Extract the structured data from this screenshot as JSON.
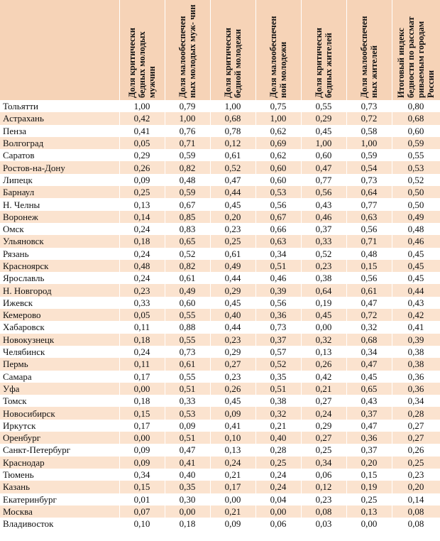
{
  "table": {
    "headers": [
      "",
      "Доля критически бедных молодых мужчин",
      "Доля малообеспечен ных молодых муж- чин",
      "Доля критически бедной молодежи",
      "Доля малообеспечен ной молодежи",
      "Доля критически бедных жителей",
      "Доля малообеспечен ных жителей",
      "Итоговый индекс бедности по рассмат риваемым городам России"
    ],
    "rows": [
      [
        "Тольятти",
        "1,00",
        "0,79",
        "1,00",
        "0,75",
        "0,55",
        "0,73",
        "0,80"
      ],
      [
        "Астрахань",
        "0,42",
        "1,00",
        "0,68",
        "1,00",
        "0,29",
        "0,72",
        "0,68"
      ],
      [
        "Пенза",
        "0,41",
        "0,76",
        "0,78",
        "0,62",
        "0,45",
        "0,58",
        "0,60"
      ],
      [
        "Волгоград",
        "0,05",
        "0,71",
        "0,12",
        "0,69",
        "1,00",
        "1,00",
        "0,59"
      ],
      [
        "Саратов",
        "0,29",
        "0,59",
        "0,61",
        "0,62",
        "0,60",
        "0,59",
        "0,55"
      ],
      [
        "Ростов-на-Дону",
        "0,26",
        "0,82",
        "0,52",
        "0,60",
        "0,47",
        "0,54",
        "0,53"
      ],
      [
        "Липецк",
        "0,09",
        "0,48",
        "0,47",
        "0,60",
        "0,77",
        "0,73",
        "0,52"
      ],
      [
        "Барнаул",
        "0,25",
        "0,59",
        "0,44",
        "0,53",
        "0,56",
        "0,64",
        "0,50"
      ],
      [
        "Н. Челны",
        "0,13",
        "0,67",
        "0,45",
        "0,56",
        "0,43",
        "0,77",
        "0,50"
      ],
      [
        "Воронеж",
        "0,14",
        "0,85",
        "0,20",
        "0,67",
        "0,46",
        "0,63",
        "0,49"
      ],
      [
        "Омск",
        "0,24",
        "0,83",
        "0,23",
        "0,66",
        "0,37",
        "0,56",
        "0,48"
      ],
      [
        "Ульяновск",
        "0,18",
        "0,65",
        "0,25",
        "0,63",
        "0,33",
        "0,71",
        "0,46"
      ],
      [
        "Рязань",
        "0,24",
        "0,52",
        "0,61",
        "0,34",
        "0,52",
        "0,48",
        "0,45"
      ],
      [
        "Красноярск",
        "0,48",
        "0,82",
        "0,49",
        "0,51",
        "0,23",
        "0,15",
        "0,45"
      ],
      [
        "Ярославль",
        "0,24",
        "0,61",
        "0,44",
        "0,46",
        "0,38",
        "0,56",
        "0,45"
      ],
      [
        "Н. Новгород",
        "0,23",
        "0,49",
        "0,29",
        "0,39",
        "0,64",
        "0,61",
        "0,44"
      ],
      [
        "Ижевск",
        "0,33",
        "0,60",
        "0,45",
        "0,56",
        "0,19",
        "0,47",
        "0,43"
      ],
      [
        "Кемерово",
        "0,05",
        "0,55",
        "0,40",
        "0,36",
        "0,45",
        "0,72",
        "0,42"
      ],
      [
        "Хабаровск",
        "0,11",
        "0,88",
        "0,44",
        "0,73",
        "0,00",
        "0,32",
        "0,41"
      ],
      [
        "Новокузнецк",
        "0,18",
        "0,55",
        "0,23",
        "0,37",
        "0,32",
        "0,68",
        "0,39"
      ],
      [
        "Челябинск",
        "0,24",
        "0,73",
        "0,29",
        "0,57",
        "0,13",
        "0,34",
        "0,38"
      ],
      [
        "Пермь",
        "0,11",
        "0,61",
        "0,27",
        "0,52",
        "0,26",
        "0,47",
        "0,38"
      ],
      [
        "Самара",
        "0,17",
        "0,55",
        "0,23",
        "0,35",
        "0,42",
        "0,45",
        "0,36"
      ],
      [
        "Уфа",
        "0,00",
        "0,51",
        "0,26",
        "0,51",
        "0,21",
        "0,65",
        "0,36"
      ],
      [
        "Томск",
        "0,18",
        "0,33",
        "0,45",
        "0,38",
        "0,27",
        "0,43",
        "0,34"
      ],
      [
        "Новосибирск",
        "0,15",
        "0,53",
        "0,09",
        "0,32",
        "0,24",
        "0,37",
        "0,28"
      ],
      [
        "Иркутск",
        "0,17",
        "0,09",
        "0,41",
        "0,21",
        "0,29",
        "0,47",
        "0,27"
      ],
      [
        "Оренбург",
        "0,00",
        "0,51",
        "0,10",
        "0,40",
        "0,27",
        "0,36",
        "0,27"
      ],
      [
        "Санкт-Петербург",
        "0,09",
        "0,47",
        "0,13",
        "0,28",
        "0,25",
        "0,37",
        "0,26"
      ],
      [
        "Краснодар",
        "0,09",
        "0,41",
        "0,24",
        "0,25",
        "0,34",
        "0,20",
        "0,25"
      ],
      [
        "Тюмень",
        "0,34",
        "0,40",
        "0,21",
        "0,24",
        "0,06",
        "0,15",
        "0,23"
      ],
      [
        "Казань",
        "0,15",
        "0,35",
        "0,17",
        "0,24",
        "0,12",
        "0,19",
        "0,20"
      ],
      [
        "Екатеринбург",
        "0,01",
        "0,30",
        "0,00",
        "0,04",
        "0,23",
        "0,25",
        "0,14"
      ],
      [
        "Москва",
        "0,07",
        "0,00",
        "0,21",
        "0,00",
        "0,08",
        "0,13",
        "0,08"
      ],
      [
        "Владивосток",
        "0,10",
        "0,18",
        "0,09",
        "0,06",
        "0,03",
        "0,00",
        "0,08"
      ]
    ]
  }
}
